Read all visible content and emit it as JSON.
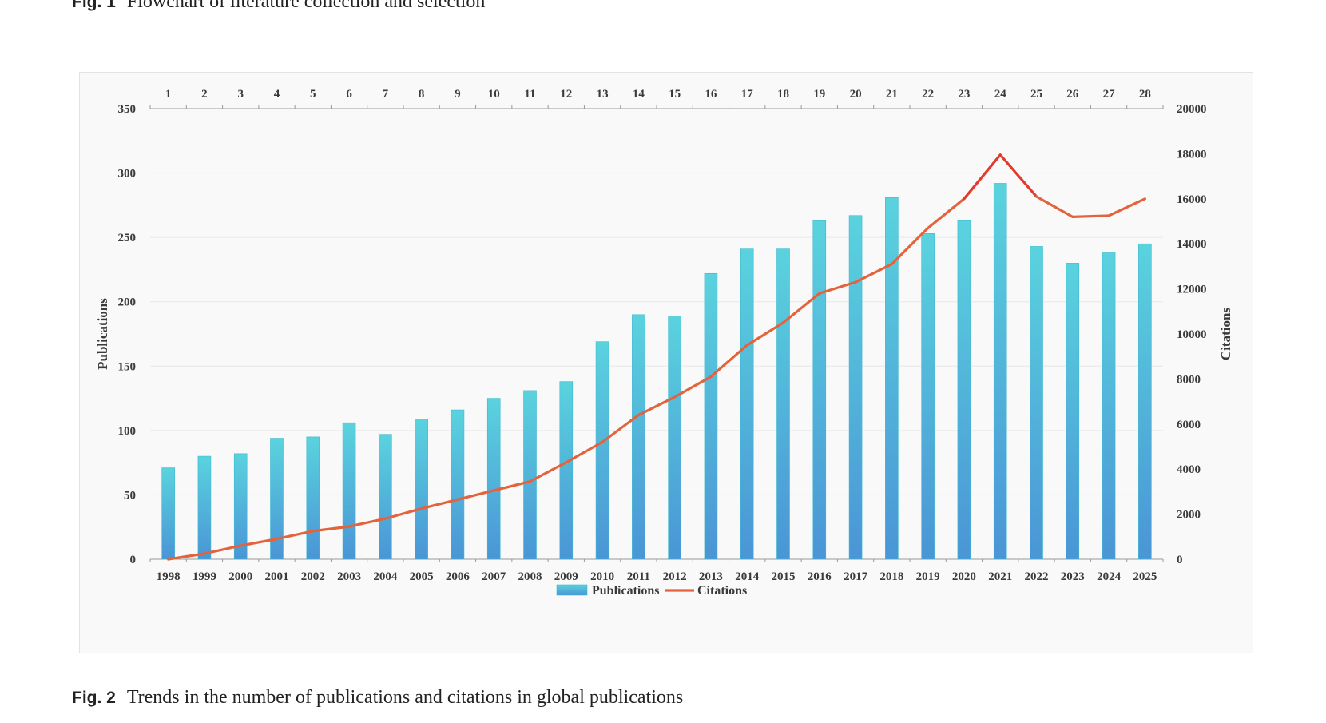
{
  "captions": {
    "fig1_label": "Fig. 1",
    "fig1_text": "Flowchart of literature collection and selection",
    "fig2_label": "Fig. 2",
    "fig2_text": "Trends in the number of publications and citations in global publications"
  },
  "colors": {
    "bar_top": "#5ad3de",
    "bar_bottom": "#4a95d6",
    "line": "#e2633c",
    "line_peak": "#e23b2e",
    "grid": "#e8e8e8",
    "axis": "#999999"
  },
  "chart_data": {
    "type": "bar",
    "categories": [
      "1998",
      "1999",
      "2000",
      "2001",
      "2002",
      "2003",
      "2004",
      "2005",
      "2006",
      "2007",
      "2008",
      "2009",
      "2010",
      "2011",
      "2012",
      "2013",
      "2014",
      "2015",
      "2016",
      "2017",
      "2018",
      "2019",
      "2020",
      "2021",
      "2022",
      "2023",
      "2024",
      "2025"
    ],
    "top_axis_labels": [
      "1",
      "2",
      "3",
      "4",
      "5",
      "6",
      "7",
      "8",
      "9",
      "10",
      "11",
      "12",
      "13",
      "14",
      "15",
      "16",
      "17",
      "18",
      "19",
      "20",
      "21",
      "22",
      "23",
      "24",
      "25",
      "26",
      "27",
      "28"
    ],
    "series": [
      {
        "name": "Publications",
        "type": "bar",
        "axis": "left",
        "values": [
          71,
          80,
          82,
          94,
          95,
          106,
          97,
          109,
          116,
          125,
          131,
          138,
          169,
          190,
          189,
          222,
          241,
          241,
          263,
          267,
          281,
          253,
          263,
          292,
          243,
          230,
          238,
          245
        ]
      },
      {
        "name": "Citations",
        "type": "line",
        "axis": "right",
        "values": [
          0,
          250,
          600,
          900,
          1250,
          1450,
          1800,
          2250,
          2650,
          3050,
          3450,
          4300,
          5200,
          6400,
          7200,
          8100,
          9500,
          10500,
          11800,
          12300,
          13100,
          14700,
          16000,
          17950,
          16100,
          15200,
          15250,
          16000
        ]
      }
    ],
    "ylabel": "Publications",
    "ylim": [
      0,
      350
    ],
    "yticks": [
      0,
      50,
      100,
      150,
      200,
      250,
      300,
      350
    ],
    "y2label": "Citations",
    "y2lim": [
      0,
      20000
    ],
    "y2ticks": [
      0,
      2000,
      4000,
      6000,
      8000,
      10000,
      12000,
      14000,
      16000,
      18000,
      20000
    ],
    "grid": true,
    "legend": "bottom-center",
    "legend_entries": [
      "Publications",
      "Citations"
    ]
  }
}
